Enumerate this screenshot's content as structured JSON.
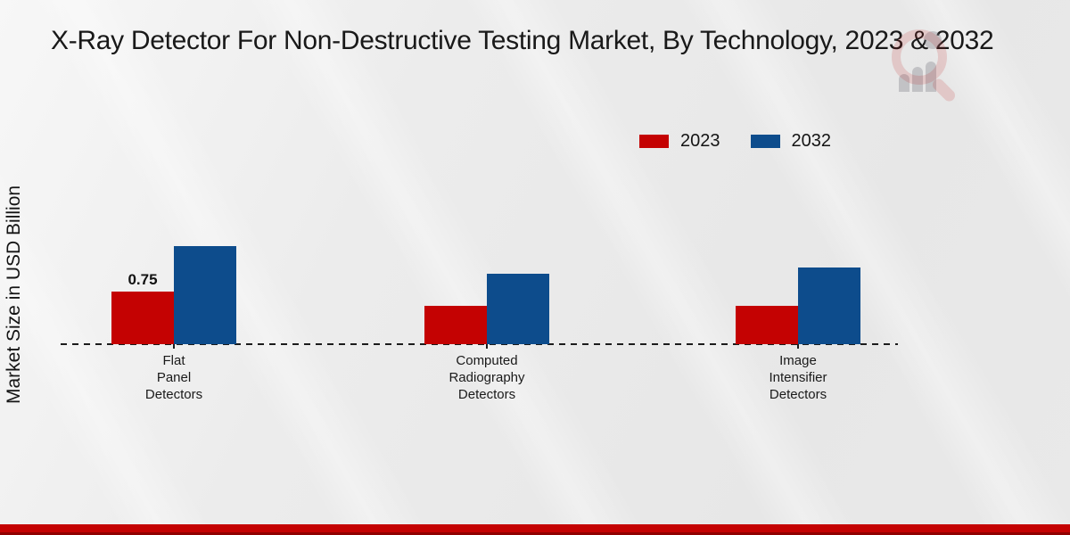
{
  "title": "X-Ray Detector For Non-Destructive Testing Market, By Technology, 2023 & 2032",
  "y_axis_label": "Market Size in USD Billion",
  "colors": {
    "series_2023": "#c40202",
    "series_2032": "#0d4c8c",
    "footer_strip": "#c40202",
    "background": "#eaeaea",
    "text": "#1a1a1a"
  },
  "watermark": "magnifier-bar-chart-logo",
  "chart_data": {
    "type": "bar",
    "title": "X-Ray Detector For Non-Destructive Testing Market, By Technology, 2023 & 2032",
    "xlabel": "",
    "ylabel": "Market Size in USD Billion",
    "categories": [
      "Flat\nPanel\nDetectors",
      "Computed\nRadiography\nDetectors",
      "Image\nIntensifier\nDetectors"
    ],
    "series": [
      {
        "name": "2023",
        "color": "#c40202",
        "values": [
          0.75,
          0.55,
          0.55
        ]
      },
      {
        "name": "2032",
        "color": "#0d4c8c",
        "values": [
          1.4,
          1.0,
          1.1
        ]
      }
    ],
    "data_labels": [
      {
        "series": 0,
        "category": 0,
        "text": "0.75"
      }
    ],
    "baseline_value": 0,
    "baseline_style": "dashed",
    "grid": false,
    "y_ticks_visible": false,
    "legend_position": "top-right"
  }
}
